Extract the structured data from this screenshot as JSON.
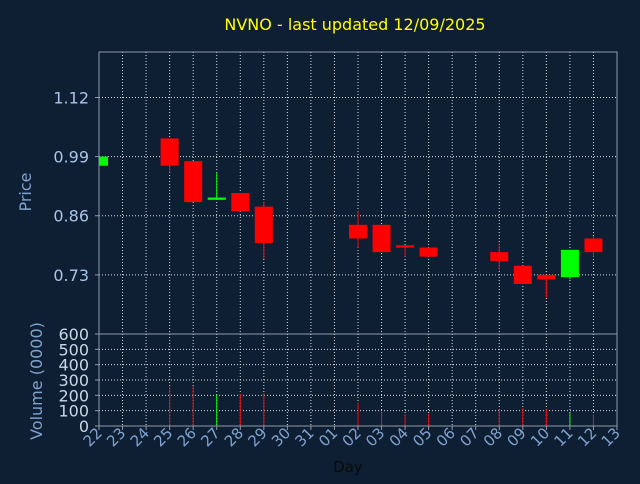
{
  "chart_data": {
    "type": "candlestick",
    "title": "NVNO - last updated 12/09/2025",
    "price_panel": {
      "ylabel": "Price",
      "yticks": [
        "1.12",
        "0.99",
        "0.86",
        "0.73"
      ],
      "ylim": [
        0.6,
        1.22
      ]
    },
    "volume_panel": {
      "ylabel": "Volume (0000)",
      "yticks": [
        "600",
        "500",
        "400",
        "300",
        "200",
        "100",
        "0"
      ],
      "ylim": [
        0,
        600
      ]
    },
    "xlabel": "Day",
    "x_ticks": [
      "22",
      "23",
      "24",
      "25",
      "26",
      "27",
      "28",
      "29",
      "30",
      "31",
      "01",
      "02",
      "03",
      "04",
      "05",
      "06",
      "07",
      "08",
      "09",
      "10",
      "11",
      "12",
      "13"
    ],
    "candles": [
      {
        "day": "22",
        "open": 0.97,
        "close": 0.99,
        "high": 0.99,
        "low": 0.97,
        "volume": 0
      },
      {
        "day": "25",
        "open": 1.03,
        "close": 0.97,
        "high": 1.03,
        "low": 0.955,
        "volume": 255
      },
      {
        "day": "26",
        "open": 0.98,
        "close": 0.89,
        "high": 0.98,
        "low": 0.89,
        "volume": 260
      },
      {
        "day": "27",
        "open": 0.895,
        "close": 0.9,
        "high": 0.955,
        "low": 0.895,
        "volume": 205
      },
      {
        "day": "28",
        "open": 0.91,
        "close": 0.87,
        "high": 0.91,
        "low": 0.87,
        "volume": 210
      },
      {
        "day": "29",
        "open": 0.88,
        "close": 0.8,
        "high": 0.89,
        "low": 0.765,
        "volume": 215
      },
      {
        "day": "02",
        "open": 0.84,
        "close": 0.81,
        "high": 0.87,
        "low": 0.79,
        "volume": 155
      },
      {
        "day": "03",
        "open": 0.84,
        "close": 0.78,
        "high": 0.84,
        "low": 0.78,
        "volume": 90
      },
      {
        "day": "04",
        "open": 0.795,
        "close": 0.79,
        "high": 0.795,
        "low": 0.77,
        "volume": 75
      },
      {
        "day": "05",
        "open": 0.79,
        "close": 0.77,
        "high": 0.79,
        "low": 0.77,
        "volume": 80
      },
      {
        "day": "08",
        "open": 0.78,
        "close": 0.76,
        "high": 0.8,
        "low": 0.74,
        "volume": 110
      },
      {
        "day": "09",
        "open": 0.75,
        "close": 0.71,
        "high": 0.75,
        "low": 0.71,
        "volume": 115
      },
      {
        "day": "10",
        "open": 0.73,
        "close": 0.72,
        "high": 0.73,
        "low": 0.68,
        "volume": 110
      },
      {
        "day": "11",
        "open": 0.725,
        "close": 0.785,
        "high": 0.785,
        "low": 0.72,
        "volume": 85
      },
      {
        "day": "12",
        "open": 0.81,
        "close": 0.78,
        "high": 0.815,
        "low": 0.77,
        "volume": 75
      }
    ],
    "grid": true,
    "colors": {
      "background": "#0f1f33",
      "up": "#00ff00",
      "down": "#ff0000",
      "title": "#ffff00",
      "grid": "#d8d8d8"
    }
  }
}
